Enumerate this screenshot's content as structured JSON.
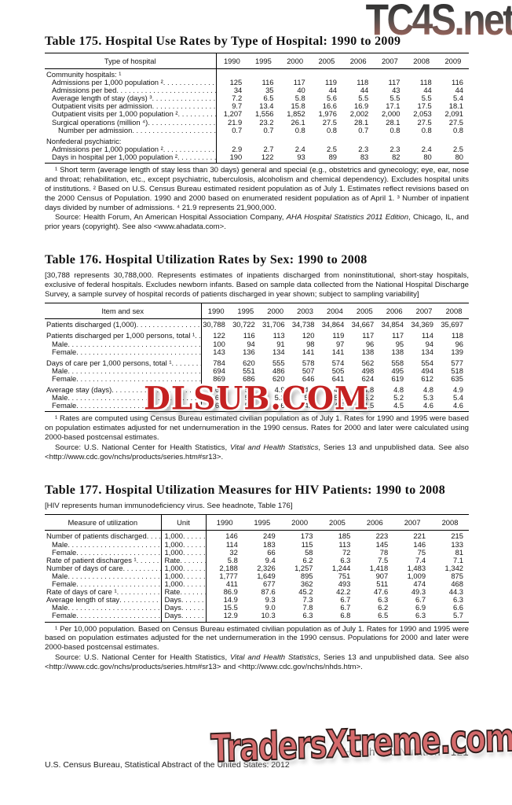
{
  "page": {
    "section_header": "Health and Nutrition",
    "page_number": "121",
    "footer": "U.S. Census Bureau, Statistical Abstract of the United States: 2012"
  },
  "watermarks": {
    "top": "TC4S.net",
    "middle": "DLSUB.COM",
    "bottom": "TradersXtreme.com"
  },
  "tables": [
    {
      "title": "Table 175. Hospital Use Rates by Type of Hospital: 1990 to 2009",
      "headnote": "",
      "has_unit": false,
      "columns": [
        "Type of hospital",
        "1990",
        "1995",
        "2000",
        "2005",
        "2006",
        "2007",
        "2008",
        "2009"
      ],
      "rows": [
        {
          "label": "Community hospitals: ¹",
          "indent": 0,
          "dots": false,
          "gap": false,
          "values": []
        },
        {
          "label": "Admissions per 1,000 population ²",
          "indent": 1,
          "dots": true,
          "gap": false,
          "values": [
            "125",
            "116",
            "117",
            "119",
            "118",
            "117",
            "118",
            "116"
          ]
        },
        {
          "label": "Admissions per bed",
          "indent": 1,
          "dots": true,
          "gap": false,
          "values": [
            "34",
            "35",
            "40",
            "44",
            "44",
            "43",
            "44",
            "44"
          ]
        },
        {
          "label": "Average length of stay (days) ³",
          "indent": 1,
          "dots": true,
          "gap": false,
          "values": [
            "7.2",
            "6.5",
            "5.8",
            "5.6",
            "5.5",
            "5.5",
            "5.5",
            "5.4"
          ]
        },
        {
          "label": "Outpatient visits per admission",
          "indent": 1,
          "dots": true,
          "gap": false,
          "values": [
            "9.7",
            "13.4",
            "15.8",
            "16.6",
            "16.9",
            "17.1",
            "17.5",
            "18.1"
          ]
        },
        {
          "label": "Outpatient visits per 1,000 population ²",
          "indent": 1,
          "dots": true,
          "gap": false,
          "values": [
            "1,207",
            "1,556",
            "1,852",
            "1,976",
            "2,002",
            "2,000",
            "2,053",
            "2,091"
          ]
        },
        {
          "label": "Surgical operations (million ⁴)",
          "indent": 1,
          "dots": true,
          "gap": false,
          "values": [
            "21.9",
            "23.2",
            "26.1",
            "27.5",
            "28.1",
            "28.1",
            "27.5",
            "27.5"
          ]
        },
        {
          "label": "Number per admission",
          "indent": 2,
          "dots": true,
          "gap": false,
          "values": [
            "0.7",
            "0.7",
            "0.8",
            "0.8",
            "0.7",
            "0.8",
            "0.8",
            "0.8"
          ]
        },
        {
          "label": "Nonfederal psychiatric:",
          "indent": 0,
          "dots": false,
          "gap": true,
          "values": []
        },
        {
          "label": "Admissions per 1,000 population ²",
          "indent": 1,
          "dots": true,
          "gap": false,
          "values": [
            "2.9",
            "2.7",
            "2.4",
            "2.5",
            "2.3",
            "2.3",
            "2.4",
            "2.5"
          ]
        },
        {
          "label": "Days in hospital per 1,000 population ²",
          "indent": 1,
          "dots": true,
          "gap": false,
          "values": [
            "190",
            "122",
            "93",
            "89",
            "83",
            "82",
            "80",
            "80"
          ]
        }
      ],
      "footnote": "¹ Short term (average length of stay less than 30 days) general and special (e.g., obstetrics and gynecology; eye, ear, nose and throat; rehabilitation, etc., except psychiatric, tuberculosis, alcoholism and chemical dependency). Excludes hospital units of institutions. ² Based on U.S. Census Bureau estimated resident population as of July 1. Estimates reflect revisions based on the 2000 Census of Population. 1990 and 2000 based on enumerated resident population as of April 1. ³ Number of inpatient days divided by number of admissions. ⁴ 21.9 represents 21,900,000.",
      "source_prefix": "Source: Health Forum, An American Hospital Association Company, ",
      "source_italic": "AHA Hospital Statistics 2011 Edition",
      "source_suffix": ", Chicago, IL, and prior years (copyright). See also <www.ahadata.com>."
    },
    {
      "title": "Table 176. Hospital Utilization Rates by Sex: 1990 to 2008",
      "headnote": "[30,788 represents 30,788,000. Represents estimates of inpatients discharged from noninstitutional, short-stay hospitals, exclusive of federal hospitals. Excludes newborn infants. Based on sample data collected from the National Hospital Discharge Survey, a sample survey of hospital records of patients discharged in year shown; subject to sampling variability]",
      "has_unit": false,
      "columns": [
        "Item and sex",
        "1990",
        "1995",
        "2000",
        "2003",
        "2004",
        "2005",
        "2006",
        "2007",
        "2008"
      ],
      "rows": [
        {
          "label": "Patients discharged (1,000)",
          "indent": 0,
          "dots": true,
          "gap": false,
          "values": [
            "30,788",
            "30,722",
            "31,706",
            "34,738",
            "34,864",
            "34,667",
            "34,854",
            "34,369",
            "35,697"
          ]
        },
        {
          "label": "Patients discharged per 1,000 persons, total ¹",
          "indent": 0,
          "dots": true,
          "gap": true,
          "values": [
            "122",
            "116",
            "113",
            "120",
            "119",
            "117",
            "117",
            "114",
            "118"
          ]
        },
        {
          "label": "Male",
          "indent": 1,
          "dots": true,
          "gap": false,
          "values": [
            "100",
            "94",
            "91",
            "98",
            "97",
            "96",
            "95",
            "94",
            "96"
          ]
        },
        {
          "label": "Female",
          "indent": 1,
          "dots": true,
          "gap": false,
          "values": [
            "143",
            "136",
            "134",
            "141",
            "141",
            "138",
            "138",
            "134",
            "139"
          ]
        },
        {
          "label": "Days of care per 1,000 persons, total ¹",
          "indent": 0,
          "dots": true,
          "gap": true,
          "values": [
            "784",
            "620",
            "555",
            "578",
            "574",
            "562",
            "558",
            "554",
            "577"
          ]
        },
        {
          "label": "Male",
          "indent": 1,
          "dots": true,
          "gap": false,
          "values": [
            "694",
            "551",
            "486",
            "507",
            "505",
            "498",
            "495",
            "494",
            "518"
          ]
        },
        {
          "label": "Female",
          "indent": 1,
          "dots": true,
          "gap": false,
          "values": [
            "869",
            "686",
            "620",
            "646",
            "641",
            "624",
            "619",
            "612",
            "635"
          ]
        },
        {
          "label": "Average stay (days)",
          "indent": 0,
          "dots": true,
          "gap": true,
          "values": [
            "6.4",
            "5.4",
            "4.9",
            "4.8",
            "4.8",
            "4.8",
            "4.8",
            "4.8",
            "4.9"
          ]
        },
        {
          "label": "Male",
          "indent": 1,
          "dots": true,
          "gap": false,
          "values": [
            "6.9",
            "5.8",
            "5.3",
            "5.2",
            "5.2",
            "5.2",
            "5.2",
            "5.3",
            "5.4"
          ]
        },
        {
          "label": "Female",
          "indent": 1,
          "dots": true,
          "gap": false,
          "values": [
            "6.1",
            "5.0",
            "4.6",
            "4.6",
            "4.5",
            "4.5",
            "4.5",
            "4.6",
            "4.6"
          ]
        }
      ],
      "footnote": "¹ Rates are computed using Census Bureau estimated civilian population as of July 1. Rates for 1990 and 1995 were based on population estimates adjusted for net undernumeration in the 1990 census. Rates for 2000 and later were calculated using 2000-based postcensal estimates.",
      "source_prefix": "Source: U.S. National Center for Health Statistics, ",
      "source_italic": "Vital and Health Statistics",
      "source_suffix": ", Series 13 and unpublished data. See also <http://www.cdc.gov/nchs/products/series.htm#sr13>."
    },
    {
      "title": "Table 177. Hospital Utilization Measures for HIV Patients: 1990 to 2008",
      "headnote": "[HIV represents human immunodeficiency virus. See headnote, Table 176]",
      "has_unit": true,
      "columns": [
        "Measure of utilization",
        "Unit",
        "1990",
        "1995",
        "2000",
        "2005",
        "2006",
        "2007",
        "2008"
      ],
      "rows": [
        {
          "label": "Number of patients discharged",
          "indent": 0,
          "dots": true,
          "gap": false,
          "unit": "1,000",
          "values": [
            "146",
            "249",
            "173",
            "185",
            "223",
            "221",
            "215"
          ]
        },
        {
          "label": "Male",
          "indent": 1,
          "dots": true,
          "gap": false,
          "unit": "1,000",
          "values": [
            "114",
            "183",
            "115",
            "113",
            "145",
            "146",
            "133"
          ]
        },
        {
          "label": "Female",
          "indent": 1,
          "dots": true,
          "gap": false,
          "unit": "1,000",
          "values": [
            "32",
            "66",
            "58",
            "72",
            "78",
            "75",
            "81"
          ]
        },
        {
          "label": "Rate of patient discharges ¹",
          "indent": 0,
          "dots": true,
          "gap": false,
          "unit": "Rate",
          "values": [
            "5.8",
            "9.4",
            "6.2",
            "6.3",
            "7.5",
            "7.4",
            "7.1"
          ]
        },
        {
          "label": "Number of days of care",
          "indent": 0,
          "dots": true,
          "gap": false,
          "unit": "1,000",
          "values": [
            "2,188",
            "2,326",
            "1,257",
            "1,244",
            "1,418",
            "1,483",
            "1,342"
          ]
        },
        {
          "label": "Male",
          "indent": 1,
          "dots": true,
          "gap": false,
          "unit": "1,000",
          "values": [
            "1,777",
            "1,649",
            "895",
            "751",
            "907",
            "1,009",
            "875"
          ]
        },
        {
          "label": "Female",
          "indent": 1,
          "dots": true,
          "gap": false,
          "unit": "1,000",
          "values": [
            "411",
            "677",
            "362",
            "493",
            "511",
            "474",
            "468"
          ]
        },
        {
          "label": "Rate of days of care ¹",
          "indent": 0,
          "dots": true,
          "gap": false,
          "unit": "Rate",
          "values": [
            "86.9",
            "87.6",
            "45.2",
            "42.2",
            "47.6",
            "49.3",
            "44.3"
          ]
        },
        {
          "label": "Average length of stay",
          "indent": 0,
          "dots": true,
          "gap": false,
          "unit": "Days",
          "values": [
            "14.9",
            "9.3",
            "7.3",
            "6.7",
            "6.3",
            "6.7",
            "6.3"
          ]
        },
        {
          "label": "Male",
          "indent": 1,
          "dots": true,
          "gap": false,
          "unit": "Days",
          "values": [
            "15.5",
            "9.0",
            "7.8",
            "6.7",
            "6.2",
            "6.9",
            "6.6"
          ]
        },
        {
          "label": "Female",
          "indent": 1,
          "dots": true,
          "gap": false,
          "unit": "Days",
          "values": [
            "12.9",
            "10.3",
            "6.3",
            "6.8",
            "6.5",
            "6.3",
            "5.7"
          ]
        }
      ],
      "footnote": "¹ Per 10,000 population. Based on Census Bureau estimated civilian population as of July 1. Rates for 1990 and 1995 were based on population estimates adjusted for the net undernumeration in the 1990 census. Populations for 2000 and later were 2000-based postcensal estimates.",
      "source_prefix": "Source: U.S. National Center for Health Statistics, ",
      "source_italic": "Vital and Health Statistics",
      "source_suffix": ", Series 13 and unpublished data. See also <http://www.cdc.gov/nchs/products/series.htm#sr13> and <http://www.cdc.gov/nchs/nhds.htm>."
    }
  ]
}
